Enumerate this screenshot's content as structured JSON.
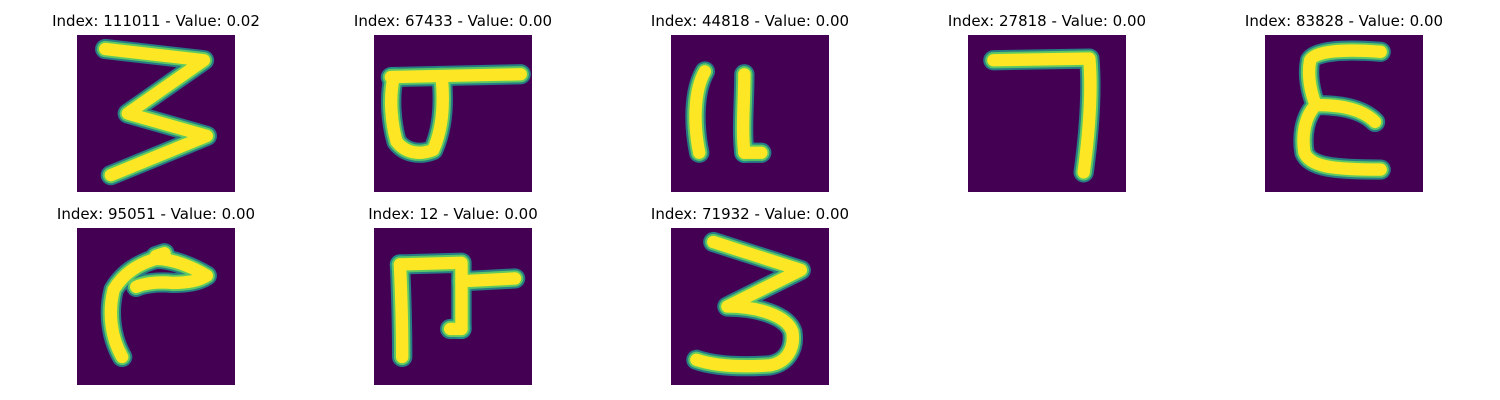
{
  "colors": {
    "background": "#440154",
    "edge": "#21908d",
    "mid": "#5ec962",
    "stroke": "#fde725"
  },
  "panels": [
    {
      "title": "Index: 111011 - Value: 0.02",
      "glyph": "glyph-3-icon"
    },
    {
      "title": "Index: 67433 - Value: 0.00",
      "glyph": "glyph-loop-bar-icon"
    },
    {
      "title": "Index: 44818 - Value: 0.00",
      "glyph": "glyph-m-icon"
    },
    {
      "title": "Index: 27818 - Value: 0.00",
      "glyph": "glyph-7-icon"
    },
    {
      "title": "Index: 83828 - Value: 0.00",
      "glyph": "glyph-epsilon-icon"
    },
    {
      "title": "Index: 95051 - Value: 0.00",
      "glyph": "glyph-hook-icon"
    },
    {
      "title": "Index: 12 - Value: 0.00",
      "glyph": "glyph-frame-icon"
    },
    {
      "title": "Index: 71932 - Value: 0.00",
      "glyph": "glyph-3b-icon"
    }
  ]
}
